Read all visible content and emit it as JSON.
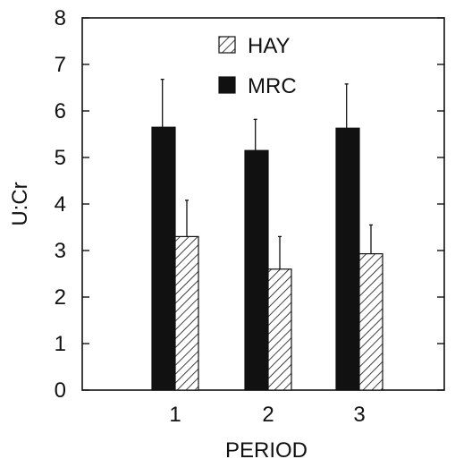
{
  "chart_data": {
    "type": "bar",
    "title": "",
    "xlabel": "PERIOD",
    "ylabel": "U:Cr",
    "ylim": [
      0,
      8
    ],
    "yticks": [
      0,
      1,
      2,
      3,
      4,
      5,
      6,
      7,
      8
    ],
    "categories": [
      "1",
      "2",
      "3"
    ],
    "legend_position": "top-center",
    "grid": false,
    "series": [
      {
        "name": "MRC",
        "fill": "solid",
        "color": "#111111",
        "values": [
          5.65,
          5.15,
          5.63
        ],
        "error_upper": [
          6.68,
          5.82,
          6.58
        ]
      },
      {
        "name": "HAY",
        "fill": "hatched",
        "color": "#111111",
        "values": [
          3.3,
          2.6,
          2.93
        ],
        "error_upper": [
          4.08,
          3.3,
          3.55
        ]
      }
    ]
  }
}
